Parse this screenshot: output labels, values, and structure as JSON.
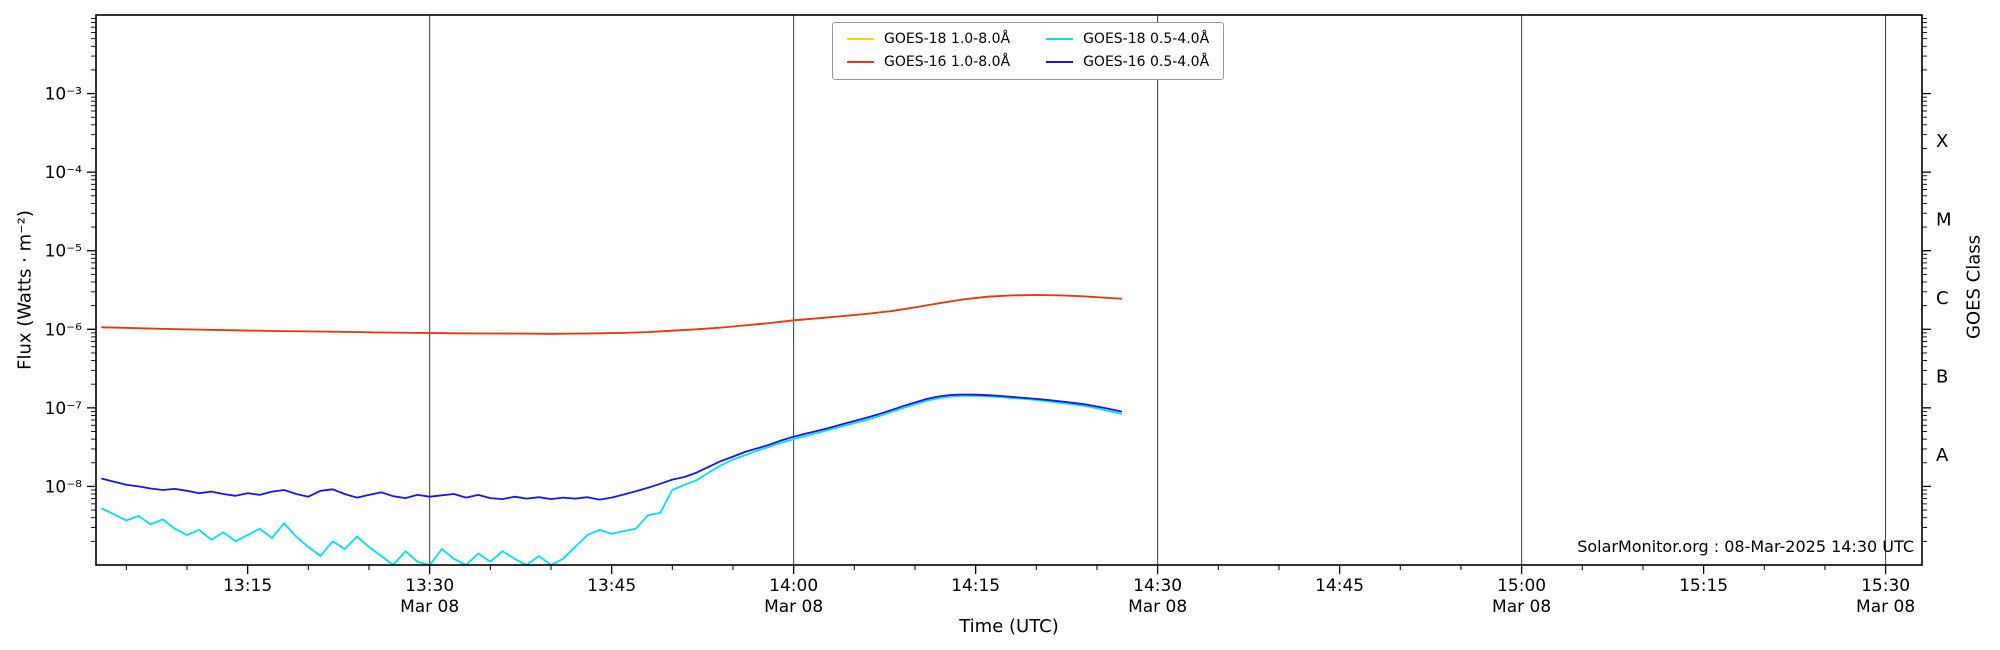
{
  "chart_data": {
    "type": "line",
    "title": "",
    "xlabel": "Time (UTC)",
    "ylabel": "Flux (Watts · m⁻²)",
    "ylabel_right": "GOES Class",
    "annotation": "SolarMonitor.org : 08-Mar-2025 14:30 UTC",
    "x_unit": "minutes after 13:00 UTC on Mar 08",
    "xlim": [
      2.5,
      153
    ],
    "ylim": [
      1e-09,
      0.01
    ],
    "yscale": "log",
    "grid": "vertical-only-at-date-ticks",
    "legend_position": "top-center",
    "frame_color": "#000000",
    "grid_color": "#3c3c3c",
    "x_ticks": [
      {
        "t": 15,
        "label": "13:15",
        "sub": ""
      },
      {
        "t": 30,
        "label": "13:30",
        "sub": "Mar 08"
      },
      {
        "t": 45,
        "label": "13:45",
        "sub": ""
      },
      {
        "t": 60,
        "label": "14:00",
        "sub": "Mar 08"
      },
      {
        "t": 75,
        "label": "14:15",
        "sub": ""
      },
      {
        "t": 90,
        "label": "14:30",
        "sub": "Mar 08"
      },
      {
        "t": 105,
        "label": "14:45",
        "sub": ""
      },
      {
        "t": 120,
        "label": "15:00",
        "sub": "Mar 08"
      },
      {
        "t": 135,
        "label": "15:15",
        "sub": ""
      },
      {
        "t": 150,
        "label": "15:30",
        "sub": "Mar 08"
      }
    ],
    "y_ticks": [
      {
        "v": 0.001,
        "label": "10⁻³"
      },
      {
        "v": 0.0001,
        "label": "10⁻⁴"
      },
      {
        "v": 1e-05,
        "label": "10⁻⁵"
      },
      {
        "v": 1e-06,
        "label": "10⁻⁶"
      },
      {
        "v": 1e-07,
        "label": "10⁻⁷"
      },
      {
        "v": 1e-08,
        "label": "10⁻⁸"
      }
    ],
    "class_bands": [
      {
        "label": "X",
        "v": 0.00025
      },
      {
        "label": "M",
        "v": 2.5e-05
      },
      {
        "label": "C",
        "v": 2.5e-06
      },
      {
        "label": "B",
        "v": 2.5e-07
      },
      {
        "label": "A",
        "v": 2.5e-08
      }
    ],
    "legend": [
      {
        "label": "GOES-18 1.0-8.0Å",
        "color": "#ffd400"
      },
      {
        "label": "GOES-16 1.0-8.0Å",
        "color": "#e8351f"
      },
      {
        "label": "GOES-18 0.5-4.0Å",
        "color": "#00dff0"
      },
      {
        "label": "GOES-16 0.5-4.0Å",
        "color": "#1616ee"
      }
    ],
    "series": [
      {
        "id": "goes18-long",
        "name": "GOES-18 1.0-8.0Å",
        "color": "#ffd400",
        "points": [
          [
            3,
            1.06e-06
          ],
          [
            5,
            1.04e-06
          ],
          [
            8,
            1.01e-06
          ],
          [
            11,
            9.9e-07
          ],
          [
            14,
            9.7e-07
          ],
          [
            17,
            9.5e-07
          ],
          [
            20,
            9.4e-07
          ],
          [
            23,
            9.25e-07
          ],
          [
            26,
            9.1e-07
          ],
          [
            29,
            9e-07
          ],
          [
            32,
            8.9e-07
          ],
          [
            35,
            8.85e-07
          ],
          [
            38,
            8.8e-07
          ],
          [
            40,
            8.75e-07
          ],
          [
            42,
            8.8e-07
          ],
          [
            44,
            8.9e-07
          ],
          [
            46,
            9e-07
          ],
          [
            48,
            9.2e-07
          ],
          [
            50,
            9.6e-07
          ],
          [
            52,
            1e-06
          ],
          [
            54,
            1.05e-06
          ],
          [
            56,
            1.12e-06
          ],
          [
            58,
            1.2e-06
          ],
          [
            60,
            1.3e-06
          ],
          [
            62,
            1.38e-06
          ],
          [
            64,
            1.47e-06
          ],
          [
            66,
            1.57e-06
          ],
          [
            68,
            1.7e-06
          ],
          [
            70,
            1.9e-06
          ],
          [
            72,
            2.15e-06
          ],
          [
            74,
            2.4e-06
          ],
          [
            76,
            2.6e-06
          ],
          [
            78,
            2.7e-06
          ],
          [
            80,
            2.73e-06
          ],
          [
            82,
            2.7e-06
          ],
          [
            84,
            2.62e-06
          ],
          [
            86,
            2.5e-06
          ],
          [
            87,
            2.45e-06
          ]
        ]
      },
      {
        "id": "goes16-long",
        "name": "GOES-16 1.0-8.0Å",
        "color": "#e8351f",
        "points": [
          [
            3,
            1.06e-06
          ],
          [
            5,
            1.04e-06
          ],
          [
            8,
            1.01e-06
          ],
          [
            11,
            9.9e-07
          ],
          [
            14,
            9.7e-07
          ],
          [
            17,
            9.5e-07
          ],
          [
            20,
            9.4e-07
          ],
          [
            23,
            9.25e-07
          ],
          [
            26,
            9.1e-07
          ],
          [
            29,
            9e-07
          ],
          [
            32,
            8.9e-07
          ],
          [
            35,
            8.85e-07
          ],
          [
            38,
            8.8e-07
          ],
          [
            40,
            8.75e-07
          ],
          [
            42,
            8.8e-07
          ],
          [
            44,
            8.9e-07
          ],
          [
            46,
            9e-07
          ],
          [
            48,
            9.2e-07
          ],
          [
            50,
            9.6e-07
          ],
          [
            52,
            1e-06
          ],
          [
            54,
            1.05e-06
          ],
          [
            56,
            1.12e-06
          ],
          [
            58,
            1.2e-06
          ],
          [
            60,
            1.3e-06
          ],
          [
            62,
            1.38e-06
          ],
          [
            64,
            1.47e-06
          ],
          [
            66,
            1.57e-06
          ],
          [
            68,
            1.7e-06
          ],
          [
            70,
            1.9e-06
          ],
          [
            72,
            2.15e-06
          ],
          [
            74,
            2.4e-06
          ],
          [
            76,
            2.6e-06
          ],
          [
            78,
            2.7e-06
          ],
          [
            80,
            2.73e-06
          ],
          [
            82,
            2.7e-06
          ],
          [
            84,
            2.62e-06
          ],
          [
            86,
            2.5e-06
          ],
          [
            87,
            2.45e-06
          ]
        ]
      },
      {
        "id": "goes18-short",
        "name": "GOES-18 0.5-4.0Å",
        "color": "#00dff0",
        "points": [
          [
            3,
            5.2e-09
          ],
          [
            4,
            4.4e-09
          ],
          [
            5,
            3.7e-09
          ],
          [
            6,
            4.2e-09
          ],
          [
            7,
            3.3e-09
          ],
          [
            8,
            3.8e-09
          ],
          [
            9,
            2.9e-09
          ],
          [
            10,
            2.4e-09
          ],
          [
            11,
            2.8e-09
          ],
          [
            12,
            2.1e-09
          ],
          [
            13,
            2.6e-09
          ],
          [
            14,
            2e-09
          ],
          [
            15,
            2.4e-09
          ],
          [
            16,
            2.9e-09
          ],
          [
            17,
            2.2e-09
          ],
          [
            18,
            3.4e-09
          ],
          [
            19,
            2.3e-09
          ],
          [
            20,
            1.7e-09
          ],
          [
            21,
            1.3e-09
          ],
          [
            22,
            2e-09
          ],
          [
            23,
            1.6e-09
          ],
          [
            24,
            2.3e-09
          ],
          [
            25,
            1.7e-09
          ],
          [
            26,
            1.3e-09
          ],
          [
            27,
            1e-09
          ],
          [
            28,
            1.5e-09
          ],
          [
            29,
            1.1e-09
          ],
          [
            30,
            1e-09
          ],
          [
            31,
            1.6e-09
          ],
          [
            32,
            1.2e-09
          ],
          [
            33,
            1e-09
          ],
          [
            34,
            1.4e-09
          ],
          [
            35,
            1.1e-09
          ],
          [
            36,
            1.5e-09
          ],
          [
            37,
            1.2e-09
          ],
          [
            38,
            1e-09
          ],
          [
            39,
            1.3e-09
          ],
          [
            40,
            1e-09
          ],
          [
            41,
            1.2e-09
          ],
          [
            42,
            1.7e-09
          ],
          [
            43,
            2.4e-09
          ],
          [
            44,
            2.8e-09
          ],
          [
            45,
            2.5e-09
          ],
          [
            46,
            2.7e-09
          ],
          [
            47,
            2.9e-09
          ],
          [
            48,
            4.3e-09
          ],
          [
            49,
            4.6e-09
          ],
          [
            50,
            9e-09
          ],
          [
            51,
            1.05e-08
          ],
          [
            52,
            1.2e-08
          ],
          [
            53,
            1.5e-08
          ],
          [
            54,
            1.85e-08
          ],
          [
            55,
            2.2e-08
          ],
          [
            56,
            2.5e-08
          ],
          [
            57,
            2.85e-08
          ],
          [
            58,
            3.2e-08
          ],
          [
            59,
            3.6e-08
          ],
          [
            60,
            4e-08
          ],
          [
            61,
            4.4e-08
          ],
          [
            62,
            4.8e-08
          ],
          [
            63,
            5.3e-08
          ],
          [
            64,
            5.8e-08
          ],
          [
            65,
            6.4e-08
          ],
          [
            66,
            7e-08
          ],
          [
            67,
            7.8e-08
          ],
          [
            68,
            8.8e-08
          ],
          [
            69,
            9.9e-08
          ],
          [
            70,
            1.11e-07
          ],
          [
            71,
            1.23e-07
          ],
          [
            72,
            1.33e-07
          ],
          [
            73,
            1.4e-07
          ],
          [
            74,
            1.43e-07
          ],
          [
            75,
            1.42e-07
          ],
          [
            76,
            1.4e-07
          ],
          [
            77,
            1.37e-07
          ],
          [
            78,
            1.33e-07
          ],
          [
            79,
            1.3e-07
          ],
          [
            80,
            1.26e-07
          ],
          [
            81,
            1.21e-07
          ],
          [
            82,
            1.16e-07
          ],
          [
            83,
            1.11e-07
          ],
          [
            84,
            1.06e-07
          ],
          [
            85,
            9.9e-08
          ],
          [
            86,
            9.1e-08
          ],
          [
            87,
            8.4e-08
          ]
        ]
      },
      {
        "id": "goes16-short",
        "name": "GOES-16 0.5-4.0Å",
        "color": "#1616ee",
        "points": [
          [
            3,
            1.25e-08
          ],
          [
            4,
            1.15e-08
          ],
          [
            5,
            1.05e-08
          ],
          [
            6,
            1e-08
          ],
          [
            7,
            9.4e-09
          ],
          [
            8,
            9e-09
          ],
          [
            9,
            9.3e-09
          ],
          [
            10,
            8.8e-09
          ],
          [
            11,
            8.2e-09
          ],
          [
            12,
            8.6e-09
          ],
          [
            13,
            8e-09
          ],
          [
            14,
            7.6e-09
          ],
          [
            15,
            8.2e-09
          ],
          [
            16,
            7.8e-09
          ],
          [
            17,
            8.6e-09
          ],
          [
            18,
            9e-09
          ],
          [
            19,
            8e-09
          ],
          [
            20,
            7.4e-09
          ],
          [
            21,
            8.8e-09
          ],
          [
            22,
            9.2e-09
          ],
          [
            23,
            8e-09
          ],
          [
            24,
            7.2e-09
          ],
          [
            25,
            7.8e-09
          ],
          [
            26,
            8.4e-09
          ],
          [
            27,
            7.5e-09
          ],
          [
            28,
            7.1e-09
          ],
          [
            29,
            7.8e-09
          ],
          [
            30,
            7.4e-09
          ],
          [
            31,
            7.7e-09
          ],
          [
            32,
            8e-09
          ],
          [
            33,
            7.2e-09
          ],
          [
            34,
            7.8e-09
          ],
          [
            35,
            7.1e-09
          ],
          [
            36,
            6.9e-09
          ],
          [
            37,
            7.4e-09
          ],
          [
            38,
            7e-09
          ],
          [
            39,
            7.3e-09
          ],
          [
            40,
            6.9e-09
          ],
          [
            41,
            7.2e-09
          ],
          [
            42,
            7e-09
          ],
          [
            43,
            7.3e-09
          ],
          [
            44,
            6.8e-09
          ],
          [
            45,
            7.2e-09
          ],
          [
            46,
            7.9e-09
          ],
          [
            47,
            8.7e-09
          ],
          [
            48,
            9.6e-09
          ],
          [
            49,
            1.08e-08
          ],
          [
            50,
            1.22e-08
          ],
          [
            51,
            1.32e-08
          ],
          [
            52,
            1.5e-08
          ],
          [
            53,
            1.78e-08
          ],
          [
            54,
            2.1e-08
          ],
          [
            55,
            2.4e-08
          ],
          [
            56,
            2.75e-08
          ],
          [
            57,
            3.05e-08
          ],
          [
            58,
            3.4e-08
          ],
          [
            59,
            3.85e-08
          ],
          [
            60,
            4.3e-08
          ],
          [
            61,
            4.7e-08
          ],
          [
            62,
            5.1e-08
          ],
          [
            63,
            5.6e-08
          ],
          [
            64,
            6.2e-08
          ],
          [
            65,
            6.8e-08
          ],
          [
            66,
            7.5e-08
          ],
          [
            67,
            8.3e-08
          ],
          [
            68,
            9.3e-08
          ],
          [
            69,
            1.05e-07
          ],
          [
            70,
            1.17e-07
          ],
          [
            71,
            1.3e-07
          ],
          [
            72,
            1.4e-07
          ],
          [
            73,
            1.46e-07
          ],
          [
            74,
            1.48e-07
          ],
          [
            75,
            1.47e-07
          ],
          [
            76,
            1.45e-07
          ],
          [
            77,
            1.42e-07
          ],
          [
            78,
            1.38e-07
          ],
          [
            79,
            1.34e-07
          ],
          [
            80,
            1.3e-07
          ],
          [
            81,
            1.26e-07
          ],
          [
            82,
            1.21e-07
          ],
          [
            83,
            1.16e-07
          ],
          [
            84,
            1.11e-07
          ],
          [
            85,
            1.04e-07
          ],
          [
            86,
            9.7e-08
          ],
          [
            87,
            9e-08
          ]
        ]
      }
    ]
  }
}
